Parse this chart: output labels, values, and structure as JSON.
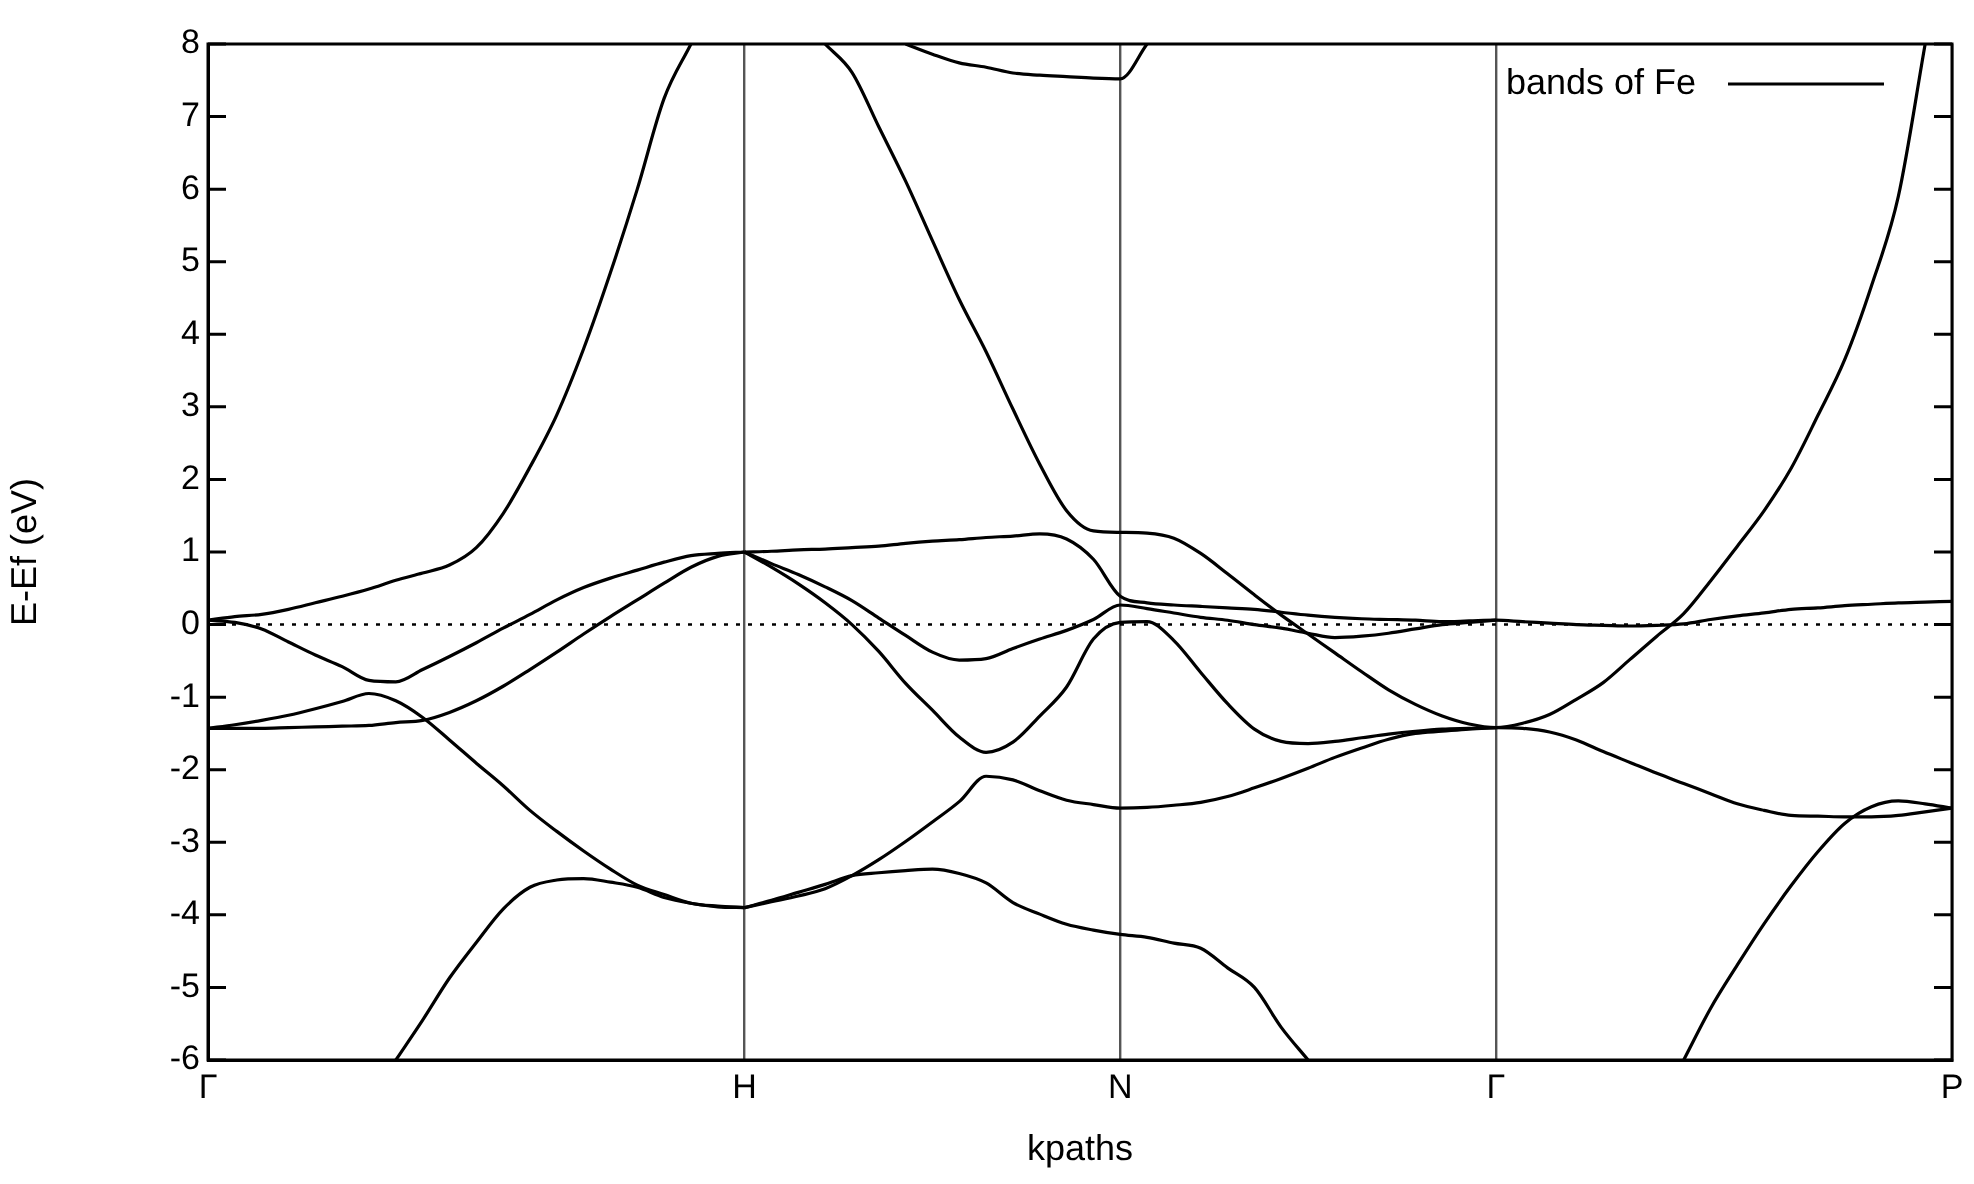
{
  "chart_data": {
    "type": "line",
    "xlabel": "kpaths",
    "ylabel": "E-Ef (eV)",
    "categories": [
      "Γ",
      null,
      null,
      null,
      null,
      null,
      null,
      null,
      null,
      null,
      null,
      null,
      null,
      null,
      null,
      null,
      null,
      null,
      null,
      null,
      "H",
      null,
      null,
      null,
      null,
      null,
      null,
      null,
      null,
      null,
      null,
      null,
      null,
      null,
      "N",
      null,
      null,
      null,
      null,
      null,
      null,
      null,
      null,
      null,
      null,
      null,
      null,
      null,
      "Γ",
      null,
      null,
      null,
      null,
      null,
      null,
      null,
      null,
      null,
      null,
      null,
      null,
      null,
      null,
      null,
      null,
      "P"
    ],
    "ylim": [
      -6,
      8
    ],
    "yticks": [
      -6,
      -5,
      -4,
      -3,
      -2,
      -1,
      0,
      1,
      2,
      3,
      4,
      5,
      6,
      7,
      8
    ],
    "grid": "x",
    "legend": "top right",
    "marker": "none",
    "ref_lines": [
      {
        "axis": "y",
        "value": 0,
        "color": "#000000",
        "line_style": "dotted"
      }
    ],
    "series": [
      {
        "name": "bands of Fe",
        "color": "#000000",
        "values": [
          0.06,
          0.11,
          0.14,
          0.21,
          0.3,
          0.39,
          0.49,
          0.61,
          0.71,
          0.82,
          1.06,
          1.53,
          2.17,
          2.89,
          3.8,
          4.85,
          6.0,
          7.25,
          8.0,
          null,
          null,
          null,
          null,
          null,
          null,
          null,
          null,
          null,
          null,
          null,
          null,
          null,
          null,
          null,
          null,
          null,
          null,
          null,
          null,
          null,
          null,
          null,
          null,
          null,
          null,
          null,
          null,
          null,
          null,
          null,
          null,
          null,
          null,
          null,
          null,
          null,
          null,
          null,
          null,
          null,
          null,
          null,
          null,
          null,
          null,
          null
        ]
      },
      {
        "color": "#000000",
        "values": [
          0.06,
          0.03,
          -0.06,
          -0.24,
          -0.42,
          -0.58,
          -0.77,
          -0.79,
          -0.62,
          -0.44,
          -0.25,
          -0.05,
          0.14,
          0.34,
          0.51,
          0.64,
          0.75,
          0.86,
          0.95,
          0.98,
          1.0,
          null,
          null,
          null,
          null,
          null,
          null,
          null,
          null,
          null,
          null,
          null,
          null,
          null,
          null,
          null,
          null,
          null,
          null,
          null,
          null,
          null,
          null,
          null,
          null,
          null,
          null,
          null,
          null,
          null,
          null,
          null,
          null,
          null,
          null,
          null,
          null,
          null,
          null,
          null,
          null,
          null,
          null,
          null,
          null,
          null
        ]
      },
      {
        "color": "#000000",
        "values": [
          -1.43,
          -1.38,
          -1.32,
          -1.25,
          -1.16,
          -1.06,
          -0.95,
          -1.05,
          -1.28,
          -1.59,
          -1.91,
          -2.22,
          -2.56,
          -2.85,
          -3.12,
          -3.37,
          -3.59,
          -3.72,
          -3.84,
          -3.88,
          -3.9,
          null,
          null,
          null,
          null,
          null,
          null,
          null,
          null,
          null,
          null,
          null,
          null,
          null,
          null,
          null,
          null,
          null,
          null,
          null,
          null,
          null,
          null,
          null,
          null,
          null,
          null,
          null,
          null,
          null,
          null,
          null,
          null,
          null,
          null,
          null,
          null,
          null,
          null,
          null,
          null,
          null,
          null,
          null,
          null,
          null
        ]
      },
      {
        "color": "#000000",
        "values": [
          -1.43,
          -1.43,
          -1.43,
          -1.42,
          -1.41,
          -1.4,
          -1.39,
          -1.35,
          -1.32,
          -1.21,
          -1.05,
          -0.85,
          -0.62,
          -0.38,
          -0.13,
          0.11,
          0.34,
          0.57,
          0.79,
          0.94,
          1.0,
          null,
          null,
          null,
          null,
          null,
          null,
          null,
          null,
          null,
          null,
          null,
          null,
          null,
          null,
          null,
          null,
          null,
          null,
          null,
          null,
          null,
          null,
          null,
          null,
          null,
          null,
          null,
          null,
          null,
          null,
          null,
          null,
          null,
          null,
          null,
          null,
          null,
          null,
          null,
          null,
          null,
          null,
          null,
          null,
          null
        ]
      },
      {
        "color": "#000000",
        "values": [
          null,
          null,
          null,
          null,
          null,
          null,
          null,
          -6,
          -5.45,
          -4.87,
          -4.38,
          -3.92,
          -3.62,
          -3.52,
          -3.5,
          -3.55,
          -3.62,
          -3.76,
          -3.84,
          -3.89,
          -3.9,
          null,
          null,
          null,
          null,
          null,
          null,
          null,
          null,
          null,
          null,
          null,
          null,
          null,
          null,
          null,
          null,
          null,
          null,
          null,
          null,
          null,
          null,
          null,
          null,
          null,
          null,
          null,
          null,
          null,
          null,
          null,
          null,
          null,
          null,
          null,
          null,
          null,
          null,
          null,
          null,
          null,
          null,
          null,
          null,
          null
        ]
      },
      {
        "color": "#000000",
        "values": [
          null,
          null,
          null,
          null,
          null,
          null,
          null,
          null,
          null,
          null,
          null,
          null,
          null,
          null,
          null,
          null,
          null,
          null,
          null,
          null,
          1.0,
          1.01,
          1.03,
          1.04,
          1.06,
          1.08,
          1.12,
          1.15,
          1.17,
          1.2,
          1.22,
          1.25,
          1.18,
          0.9,
          0.39,
          0.3,
          0.27,
          0.25,
          0.23,
          0.21,
          0.17,
          0.13,
          0.1,
          0.08,
          0.07,
          0.06,
          0.04,
          0.05,
          0.06,
          0.04,
          0.02,
          0.0,
          -0.01,
          -0.02,
          -0.01,
          0.01,
          0.07,
          0.12,
          0.16,
          0.21,
          0.23,
          0.26,
          0.28,
          0.3,
          0.31,
          0.32
        ]
      },
      {
        "color": "#000000",
        "values": [
          null,
          null,
          null,
          null,
          null,
          null,
          null,
          null,
          null,
          null,
          null,
          null,
          null,
          null,
          null,
          null,
          null,
          null,
          null,
          null,
          null,
          null,
          null,
          8.0,
          7.61,
          6.86,
          6.11,
          5.29,
          4.48,
          3.76,
          2.97,
          2.21,
          1.57,
          1.29,
          1.27,
          1.26,
          1.19,
          0.98,
          0.7,
          0.41,
          0.13,
          -0.13,
          -0.39,
          -0.65,
          -0.9,
          -1.1,
          -1.26,
          -1.37,
          -1.42,
          -1.36,
          -1.24,
          -1.03,
          -0.8,
          -0.48,
          -0.16,
          0.15,
          0.6,
          1.08,
          1.57,
          2.15,
          2.88,
          3.65,
          4.67,
          5.9,
          8.0,
          null
        ]
      },
      {
        "color": "#000000",
        "values": [
          null,
          null,
          null,
          null,
          null,
          null,
          null,
          null,
          null,
          null,
          null,
          null,
          null,
          null,
          null,
          null,
          null,
          null,
          null,
          null,
          1.0,
          0.84,
          0.69,
          0.52,
          0.33,
          0.09,
          -0.15,
          -0.38,
          -0.49,
          -0.47,
          -0.33,
          -0.2,
          -0.08,
          0.07,
          0.27,
          0.22,
          0.16,
          0.1,
          0.06,
          0.0,
          -0.05,
          -0.12,
          -0.18,
          -0.16,
          -0.12,
          -0.06,
          0.0,
          0.03,
          0.06,
          null,
          null,
          null,
          null,
          null,
          null,
          null,
          null,
          null,
          null,
          null,
          null,
          null,
          null,
          null,
          null,
          null
        ]
      },
      {
        "color": "#000000",
        "values": [
          null,
          null,
          null,
          null,
          null,
          null,
          null,
          null,
          null,
          null,
          null,
          null,
          null,
          null,
          null,
          null,
          null,
          null,
          null,
          null,
          1.0,
          0.79,
          0.56,
          0.3,
          0.0,
          -0.37,
          -0.81,
          -1.18,
          -1.55,
          -1.76,
          -1.62,
          -1.26,
          -0.86,
          -0.2,
          0.03,
          0.04,
          -0.22,
          -0.66,
          -1.09,
          -1.44,
          -1.61,
          -1.64,
          -1.61,
          -1.56,
          -1.51,
          -1.47,
          -1.44,
          -1.43,
          -1.42,
          -1.43,
          -1.48,
          -1.59,
          -1.75,
          -1.9,
          -2.05,
          -2.19,
          -2.33,
          -2.47,
          -2.56,
          -2.63,
          -2.64,
          -2.65,
          -2.65,
          -2.63,
          -2.58,
          -2.53
        ]
      },
      {
        "color": "#000000",
        "values": [
          null,
          null,
          null,
          null,
          null,
          null,
          null,
          null,
          null,
          null,
          null,
          null,
          null,
          null,
          null,
          null,
          null,
          null,
          null,
          null,
          -3.9,
          -3.82,
          -3.74,
          -3.64,
          -3.46,
          -3.24,
          -2.99,
          -2.72,
          -2.44,
          -2.09,
          -2.14,
          -2.29,
          -2.42,
          -2.48,
          -2.53,
          -2.52,
          -2.49,
          -2.45,
          -2.37,
          -2.25,
          -2.12,
          -1.98,
          -1.83,
          -1.7,
          -1.58,
          -1.5,
          -1.47,
          -1.44,
          -1.42,
          null,
          null,
          null,
          null,
          null,
          null,
          null,
          null,
          null,
          null,
          null,
          null,
          null,
          null,
          null,
          null,
          null
        ]
      },
      {
        "color": "#000000",
        "values": [
          null,
          null,
          null,
          null,
          null,
          null,
          null,
          null,
          null,
          null,
          null,
          null,
          null,
          null,
          null,
          null,
          null,
          null,
          null,
          null,
          -3.9,
          -3.8,
          -3.69,
          -3.58,
          -3.46,
          -3.42,
          -3.39,
          -3.37,
          -3.43,
          -3.56,
          -3.83,
          -3.99,
          -4.13,
          -4.21,
          -4.27,
          -4.31,
          -4.39,
          -4.46,
          -4.73,
          -5.0,
          -5.55,
          -6,
          null,
          null,
          null,
          null,
          null,
          null,
          null,
          null,
          null,
          null,
          null,
          null,
          null,
          null,
          null,
          null,
          null,
          null,
          null,
          null,
          null,
          null,
          null,
          null
        ]
      },
      {
        "color": "#000000",
        "values": [
          null,
          null,
          null,
          null,
          null,
          null,
          null,
          null,
          null,
          null,
          null,
          null,
          null,
          null,
          null,
          null,
          null,
          null,
          null,
          null,
          null,
          null,
          null,
          null,
          null,
          null,
          8.0,
          7.86,
          7.74,
          7.68,
          7.6,
          7.57,
          7.55,
          7.53,
          7.52,
          8.0,
          null,
          null,
          null,
          null,
          null,
          null,
          null,
          null,
          null,
          null,
          null,
          null,
          null,
          null,
          null,
          null,
          null,
          null,
          null,
          null,
          null,
          null,
          null,
          null,
          null,
          null,
          null,
          null,
          null,
          null
        ]
      },
      {
        "color": "#000000",
        "values": [
          null,
          null,
          null,
          null,
          null,
          null,
          null,
          null,
          null,
          null,
          null,
          null,
          null,
          null,
          null,
          null,
          null,
          null,
          null,
          null,
          null,
          null,
          null,
          null,
          null,
          null,
          null,
          null,
          null,
          null,
          null,
          null,
          null,
          null,
          null,
          null,
          null,
          null,
          null,
          null,
          null,
          null,
          null,
          null,
          null,
          null,
          null,
          null,
          null,
          null,
          null,
          null,
          null,
          null,
          null,
          -6,
          -5.29,
          -4.69,
          -4.12,
          -3.6,
          -3.13,
          -2.74,
          -2.51,
          -2.43,
          -2.47,
          -2.53
        ]
      }
    ]
  }
}
